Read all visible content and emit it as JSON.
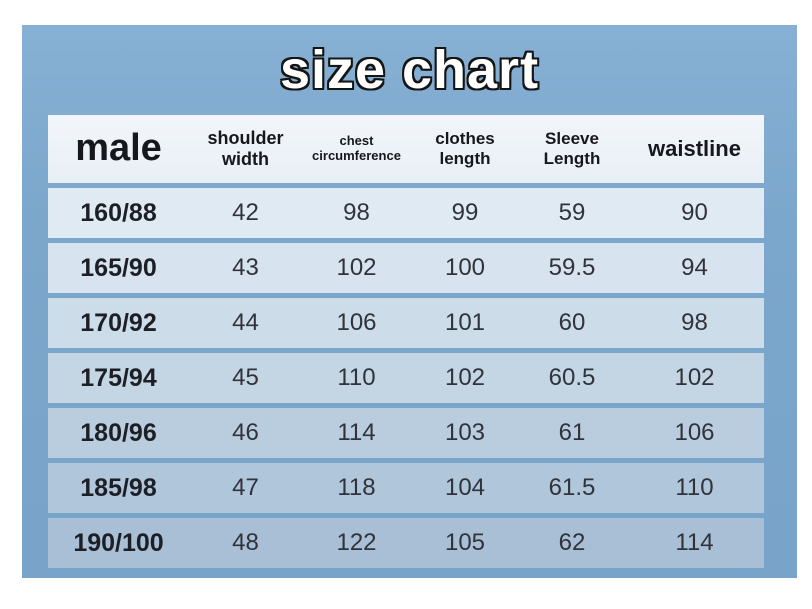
{
  "chart_data": {
    "type": "table",
    "title": "size chart",
    "columns": [
      "male",
      "shoulder width",
      "chest circumference",
      "clothes length",
      "Sleeve Length",
      "waistline"
    ],
    "header_display_lines": [
      [
        "male"
      ],
      [
        "shoulder",
        "width"
      ],
      [
        "chest",
        "circumference"
      ],
      [
        "clothes",
        "length"
      ],
      [
        "Sleeve",
        "Length"
      ],
      [
        "waistline"
      ]
    ],
    "rows": [
      [
        "160/88",
        "42",
        "98",
        "99",
        "59",
        "90"
      ],
      [
        "165/90",
        "43",
        "102",
        "100",
        "59.5",
        "94"
      ],
      [
        "170/92",
        "44",
        "106",
        "101",
        "60",
        "98"
      ],
      [
        "175/94",
        "45",
        "110",
        "102",
        "60.5",
        "102"
      ],
      [
        "180/96",
        "46",
        "114",
        "103",
        "61",
        "106"
      ],
      [
        "185/98",
        "47",
        "118",
        "104",
        "61.5",
        "110"
      ],
      [
        "190/100",
        "48",
        "122",
        "105",
        "62",
        "114"
      ]
    ]
  },
  "colors": {
    "page_bg": "#ffffff",
    "panel_blue": "#7ca7cc",
    "header_row_bg": "#eef4f8",
    "last_row_bg": "#a8bfd5",
    "title_fill": "#ffffff",
    "title_outline": "#151515",
    "text_dark": "#16181d"
  }
}
